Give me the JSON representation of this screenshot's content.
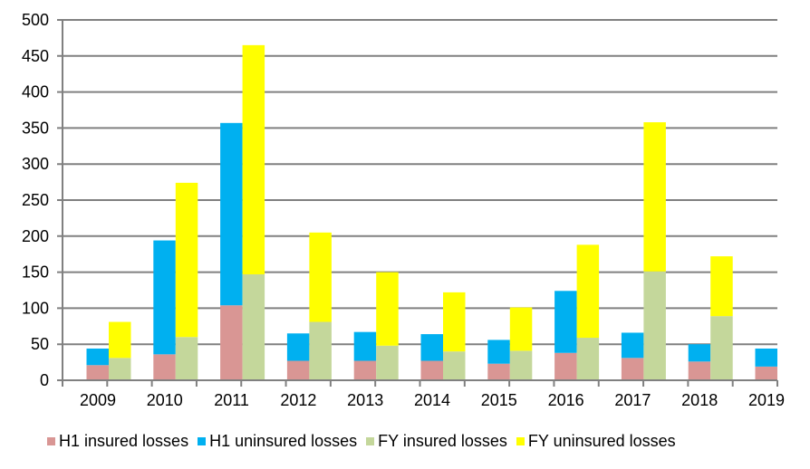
{
  "chart_data": {
    "type": "bar",
    "stacked": true,
    "grouped_stacks": true,
    "categories": [
      "2009",
      "2010",
      "2011",
      "2012",
      "2013",
      "2014",
      "2015",
      "2016",
      "2017",
      "2018",
      "2019"
    ],
    "ylim": [
      0,
      500
    ],
    "yticks": [
      0,
      50,
      100,
      150,
      200,
      250,
      300,
      350,
      400,
      450,
      500
    ],
    "grid": true,
    "legend_position": "bottom",
    "series": [
      {
        "name": "H1 insured losses",
        "stack": "H1",
        "color": "#d99694",
        "values": [
          21,
          36,
          104,
          27,
          27,
          27,
          23,
          38,
          31,
          26,
          19
        ]
      },
      {
        "name": "H1 uninsured losses",
        "stack": "H1",
        "color": "#00b0f0",
        "values": [
          23,
          158,
          253,
          38,
          40,
          37,
          33,
          86,
          35,
          24,
          25
        ]
      },
      {
        "name": "FY insured losses",
        "stack": "FY",
        "color": "#c4d79b",
        "values": [
          31,
          60,
          147,
          81,
          48,
          40,
          41,
          59,
          151,
          89,
          null
        ]
      },
      {
        "name": "FY uninsured losses",
        "stack": "FY",
        "color": "#ffff00",
        "values": [
          50,
          214,
          318,
          124,
          102,
          82,
          60,
          129,
          207,
          83,
          null
        ]
      }
    ]
  }
}
